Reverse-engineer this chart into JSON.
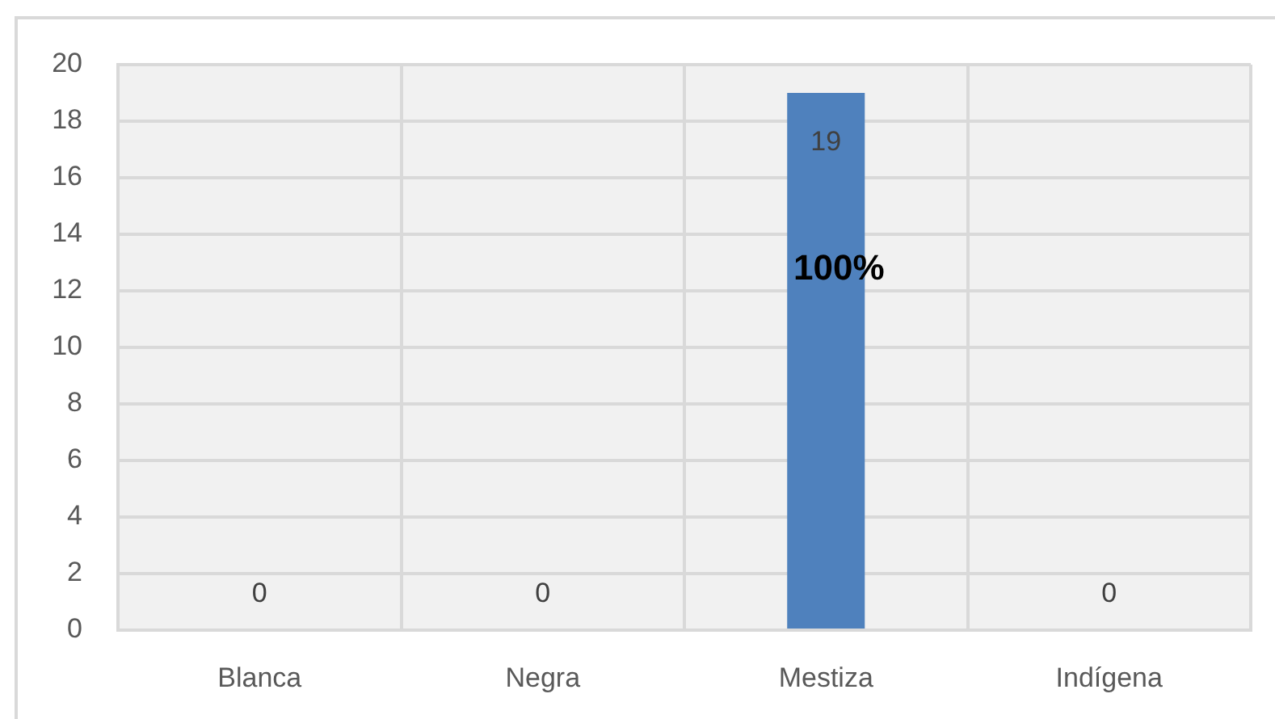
{
  "chart_data": {
    "type": "bar",
    "categories": [
      "Blanca",
      "Negra",
      "Mestiza",
      "Indígena"
    ],
    "values": [
      0,
      0,
      19,
      0
    ],
    "color": "#4f81bd",
    "ylim": [
      0,
      20
    ],
    "yticks": [
      0,
      2,
      4,
      6,
      8,
      10,
      12,
      14,
      16,
      18,
      20
    ],
    "grid": true,
    "data_labels": true,
    "annotations": [
      "100%"
    ]
  }
}
